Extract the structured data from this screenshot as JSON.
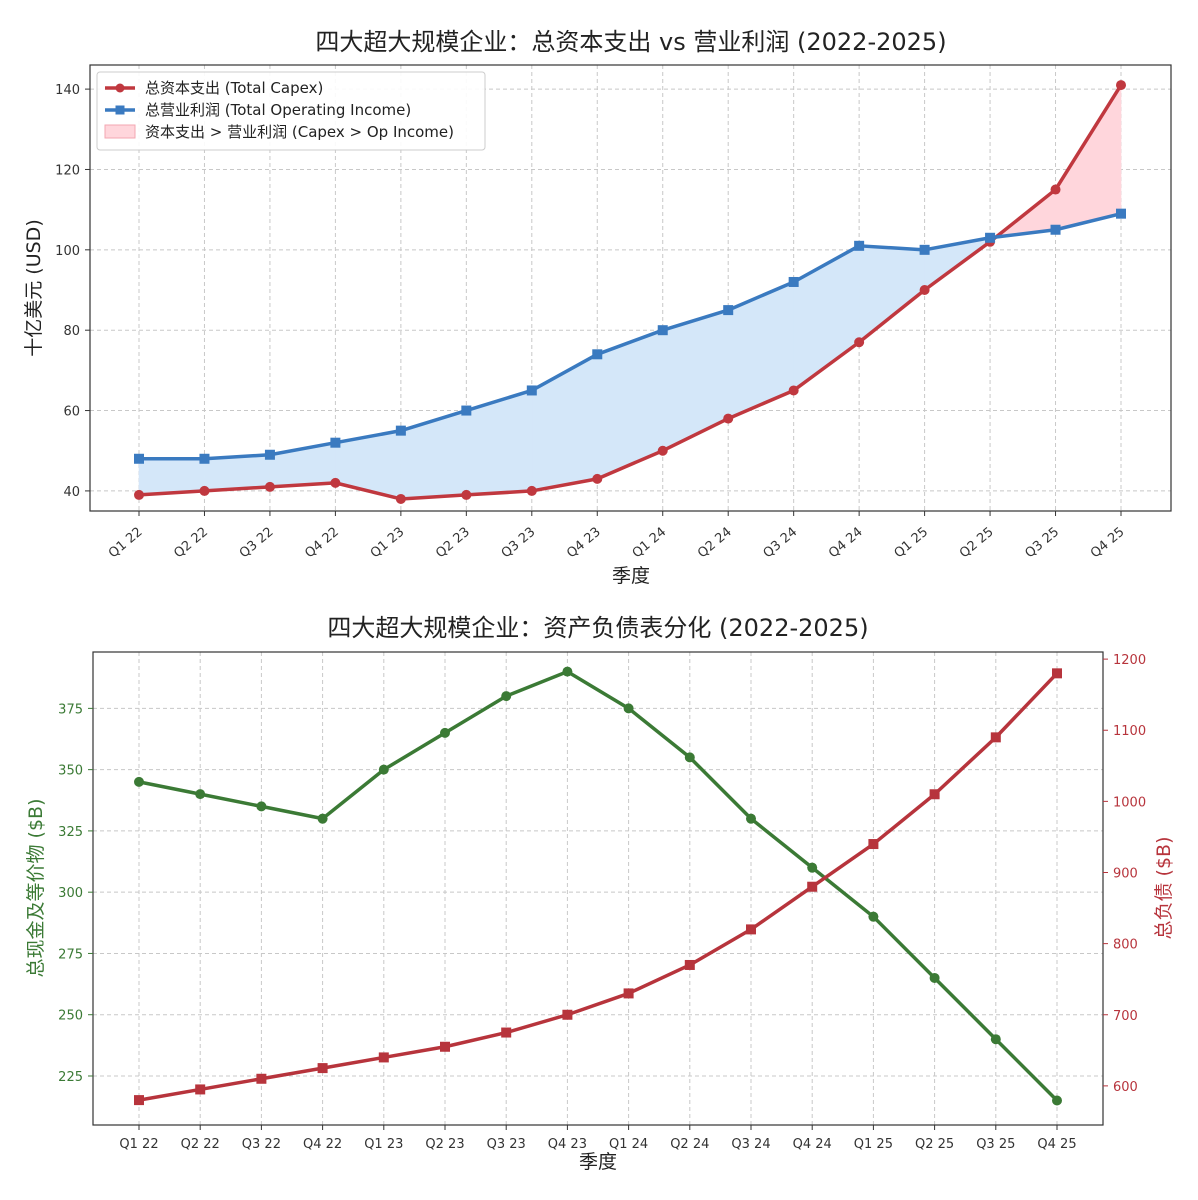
{
  "chart_data": [
    {
      "type": "line",
      "title": "四大超大规模企业：总资本支出 vs 营业利润 (2022-2025)",
      "xlabel": "季度",
      "ylabel": "十亿美元 (USD)",
      "ylim": [
        35,
        146
      ],
      "yticks": [
        40,
        60,
        80,
        100,
        120,
        140
      ],
      "grid": true,
      "legend_position": "top-left",
      "categories": [
        "Q1 22",
        "Q2 22",
        "Q3 22",
        "Q4 22",
        "Q1 23",
        "Q2 23",
        "Q3 23",
        "Q4 23",
        "Q1 24",
        "Q2 24",
        "Q3 24",
        "Q4 24",
        "Q1 25",
        "Q2 25",
        "Q3 25",
        "Q4 25"
      ],
      "series": [
        {
          "name": "总资本支出 (Total Capex)",
          "color": "#c0383f",
          "marker": "circle",
          "values": [
            39,
            40,
            41,
            42,
            38,
            39,
            40,
            43,
            50,
            58,
            65,
            77,
            90,
            102,
            115,
            141
          ]
        },
        {
          "name": "总营业利润 (Total Operating Income)",
          "color": "#3a7ac0",
          "marker": "square",
          "values": [
            48,
            48,
            49,
            52,
            55,
            60,
            65,
            74,
            80,
            85,
            92,
            101,
            100,
            103,
            105,
            109
          ]
        }
      ],
      "fills": [
        {
          "name": "资本支出 > 营业利润 (Capex > Op Income)",
          "color": "#ffd6dc",
          "condition": "capex_above"
        },
        {
          "name": "",
          "color": "#d4e7f9",
          "condition": "income_above"
        }
      ]
    },
    {
      "type": "line",
      "title": "四大超大规模企业：资产负债表分化 (2022-2025)",
      "xlabel": "季度",
      "ylabel_left": "总现金及等价物 ($B)",
      "ylabel_right": "总负债 ($B)",
      "ylim_left": [
        205,
        398
      ],
      "ylim_right": [
        545,
        1210
      ],
      "yticks_left": [
        225,
        250,
        275,
        300,
        325,
        350,
        375
      ],
      "yticks_right": [
        600,
        700,
        800,
        900,
        1000,
        1100,
        1200
      ],
      "grid": true,
      "categories": [
        "Q1 22",
        "Q2 22",
        "Q3 22",
        "Q4 22",
        "Q1 23",
        "Q2 23",
        "Q3 23",
        "Q4 23",
        "Q1 24",
        "Q2 24",
        "Q3 24",
        "Q4 24",
        "Q1 25",
        "Q2 25",
        "Q3 25",
        "Q4 25"
      ],
      "series": [
        {
          "name": "总现金及等价物 ($B)",
          "axis": "left",
          "color": "#3b7a35",
          "marker": "circle",
          "values": [
            345,
            340,
            335,
            330,
            350,
            365,
            380,
            390,
            375,
            355,
            330,
            310,
            290,
            265,
            240,
            215
          ]
        },
        {
          "name": "总负债 ($B)",
          "axis": "right",
          "color": "#b7343c",
          "marker": "square",
          "values": [
            580,
            595,
            610,
            625,
            640,
            655,
            675,
            700,
            730,
            770,
            820,
            880,
            940,
            1010,
            1090,
            1180
          ]
        }
      ]
    }
  ]
}
